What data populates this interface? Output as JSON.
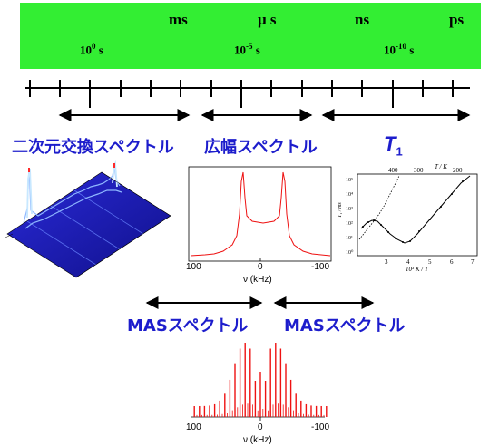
{
  "timescale": {
    "units": [
      {
        "id": "ms",
        "text": "ms"
      },
      {
        "id": "us",
        "text": "μ s"
      },
      {
        "id": "ns",
        "text": "ns"
      },
      {
        "id": "ps",
        "text": "ps"
      }
    ],
    "powers": [
      {
        "base": "10",
        "exp": "0",
        "suffix": " s"
      },
      {
        "base": "10",
        "exp": "-5",
        "suffix": " s"
      },
      {
        "base": "10",
        "exp": "-10",
        "suffix": " s"
      }
    ]
  },
  "labels": {
    "exchange": "二次元交換スペクトル",
    "broadline": "広幅スペクトル",
    "t1_main": "T",
    "t1_sub": "1",
    "mas_left": "MASスペクトル",
    "mas_right": "MASスペクトル"
  },
  "broadline_plot": {
    "x_ticks": [
      "100",
      "0",
      "-100"
    ],
    "xlabel": "ν (kHz)"
  },
  "mas_plot": {
    "x_ticks": [
      "100",
      "0",
      "-100"
    ],
    "xlabel": "ν (kHz)"
  },
  "t1_plot": {
    "top_label": "T / K",
    "top_ticks": [
      "400",
      "300",
      "200"
    ],
    "ylabel": "T₁ / ms",
    "y_ticks": [
      "10⁵",
      "10⁴",
      "10³",
      "10²",
      "10¹",
      "10⁰"
    ],
    "x_ticks": [
      "3",
      "4",
      "5",
      "6",
      "7"
    ],
    "xlabel": "10³ K / T"
  },
  "colors": {
    "band": "#33ee33",
    "label_blue": "#1d1dcc",
    "spectrum_red": "#ee1111"
  }
}
